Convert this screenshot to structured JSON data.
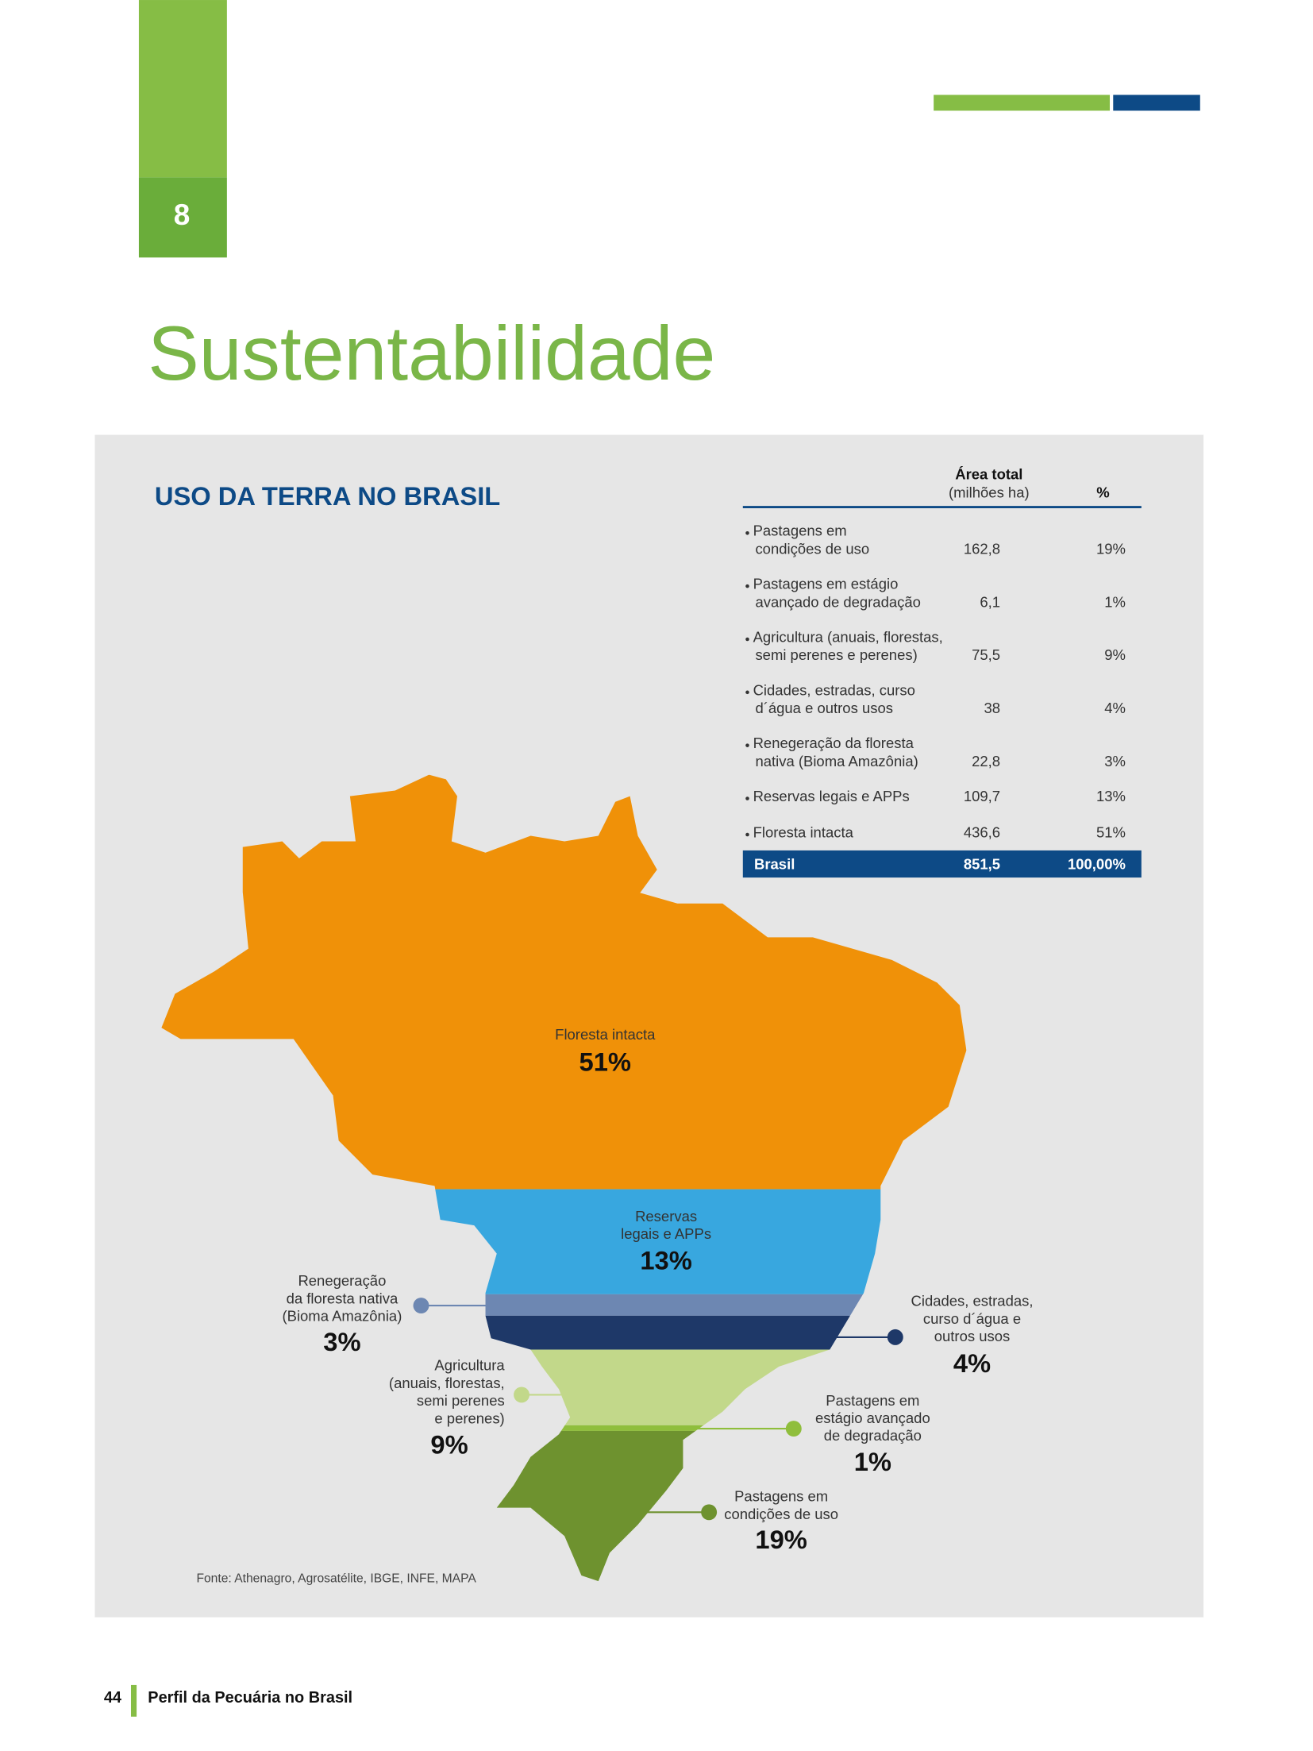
{
  "header": {
    "chapter": "8",
    "title": "Sustentabilidade"
  },
  "section_title": "USO DA TERRA NO BRASIL",
  "table": {
    "columns": {
      "area": {
        "title": "Área total",
        "unit": "(milhões ha)"
      },
      "percent": "%"
    },
    "rows": [
      {
        "label": [
          "Pastagens em",
          "condições de uso"
        ],
        "area": "162,8",
        "percent": "19%"
      },
      {
        "label": [
          "Pastagens em estágio",
          "avançado de degradação"
        ],
        "area": "6,1",
        "percent": "1%"
      },
      {
        "label": [
          "Agricultura (anuais, florestas,",
          "semi perenes e perenes)"
        ],
        "area": "75,5",
        "percent": "9%"
      },
      {
        "label": [
          "Cidades, estradas, curso",
          "d´água e outros usos"
        ],
        "area": "38",
        "percent": "4%"
      },
      {
        "label": [
          "Renegeração da floresta",
          "nativa (Bioma Amazônia)"
        ],
        "area": "22,8",
        "percent": "3%"
      },
      {
        "label": [
          "Reservas legais e APPs"
        ],
        "area": "109,7",
        "percent": "13%"
      },
      {
        "label": [
          "Floresta intacta"
        ],
        "area": "436,6",
        "percent": "51%"
      }
    ],
    "total": {
      "label": "Brasil",
      "area": "851,5",
      "percent": "100,00%"
    }
  },
  "map": {
    "labels": [
      {
        "lines": [
          "Floresta intacta"
        ],
        "value": "51%"
      },
      {
        "lines": [
          "Reservas",
          "legais e APPs"
        ],
        "value": "13%"
      },
      {
        "lines": [
          "Renegeração",
          "da floresta nativa",
          "(Bioma Amazônia)"
        ],
        "value": "3%"
      },
      {
        "lines": [
          "Agricultura",
          "(anuais, florestas,",
          "semi perenes",
          "e perenes)"
        ],
        "value": "9%"
      },
      {
        "lines": [
          "Cidades, estradas,",
          "curso d´água e",
          "outros usos"
        ],
        "value": "4%"
      },
      {
        "lines": [
          "Pastagens em",
          "estágio avançado",
          "de degradação"
        ],
        "value": "1%"
      },
      {
        "lines": [
          "Pastagens em",
          "condições de uso"
        ],
        "value": "19%"
      }
    ]
  },
  "source": "Fonte: Athenagro, Agrosatélite, IBGE, INFE, MAPA",
  "footer": {
    "page": "44",
    "title": "Perfil da Pecuária no Brasil"
  }
}
